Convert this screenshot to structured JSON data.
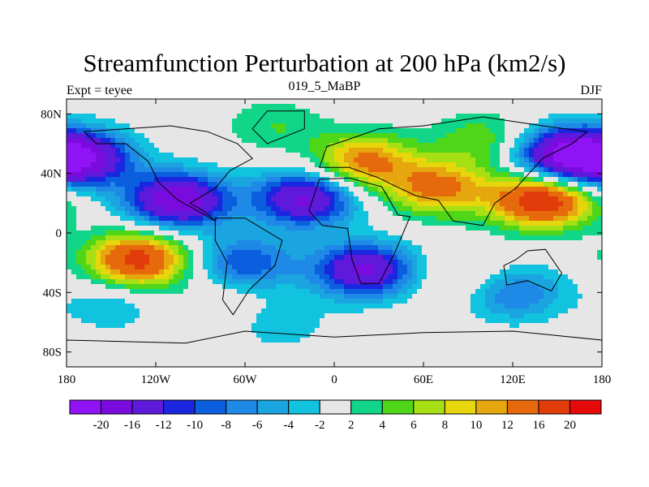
{
  "chart_data": {
    "type": "heatmap",
    "title": "Streamfunction Perturbation at 200 hPa (km2/s)",
    "left_string": "Expt = teyee",
    "center_string": "019_5_MaBP",
    "right_string": "DJF",
    "xlim": [
      -180,
      180
    ],
    "ylim": [
      -90,
      90
    ],
    "x_ticks": [
      {
        "value": -180,
        "label": "180"
      },
      {
        "value": -120,
        "label": "120W"
      },
      {
        "value": -60,
        "label": "60W"
      },
      {
        "value": 0,
        "label": "0"
      },
      {
        "value": 60,
        "label": "60E"
      },
      {
        "value": 120,
        "label": "120E"
      },
      {
        "value": 180,
        "label": "180"
      }
    ],
    "y_ticks": [
      {
        "value": 80,
        "label": "80N"
      },
      {
        "value": 40,
        "label": "40N"
      },
      {
        "value": 0,
        "label": "0"
      },
      {
        "value": -40,
        "label": "40S"
      },
      {
        "value": -80,
        "label": "80S"
      }
    ],
    "colorbar": {
      "labels": [
        "-20",
        "-16",
        "-12",
        "-10",
        "-8",
        "-6",
        "-4",
        "-2",
        "2",
        "4",
        "6",
        "8",
        "10",
        "12",
        "16",
        "20"
      ],
      "colors": [
        "#8f13f5",
        "#7a0bde",
        "#5e19da",
        "#1b26e0",
        "#0b5ede",
        "#1e89e6",
        "#1aa5e0",
        "#12c3e0",
        "#e6e6e6",
        "#11d68a",
        "#4fd618",
        "#a6e014",
        "#e6d60b",
        "#e6a60e",
        "#e66a0b",
        "#e33c0b",
        "#e60a0b"
      ]
    },
    "anomalies": [
      {
        "lon": -170,
        "lat": 50,
        "value": -18
      },
      {
        "lon": -105,
        "lat": 22,
        "value": -20
      },
      {
        "lon": -132,
        "lat": -18,
        "value": 18
      },
      {
        "lon": -60,
        "lat": -20,
        "value": -10
      },
      {
        "lon": -75,
        "lat": -50,
        "value": 3
      },
      {
        "lon": -40,
        "lat": -60,
        "value": -4
      },
      {
        "lon": -150,
        "lat": -48,
        "value": -4
      },
      {
        "lon": -20,
        "lat": 23,
        "value": -17
      },
      {
        "lon": 20,
        "lat": -25,
        "value": -17
      },
      {
        "lon": 20,
        "lat": 48,
        "value": 13
      },
      {
        "lon": 70,
        "lat": 30,
        "value": 13
      },
      {
        "lon": 140,
        "lat": 22,
        "value": 20
      },
      {
        "lon": 155,
        "lat": 52,
        "value": -20
      },
      {
        "lon": 120,
        "lat": -40,
        "value": -9
      },
      {
        "lon": 90,
        "lat": -30,
        "value": 4
      },
      {
        "lon": -40,
        "lat": 72,
        "value": 4
      },
      {
        "lon": 100,
        "lat": 62,
        "value": 6
      }
    ]
  }
}
